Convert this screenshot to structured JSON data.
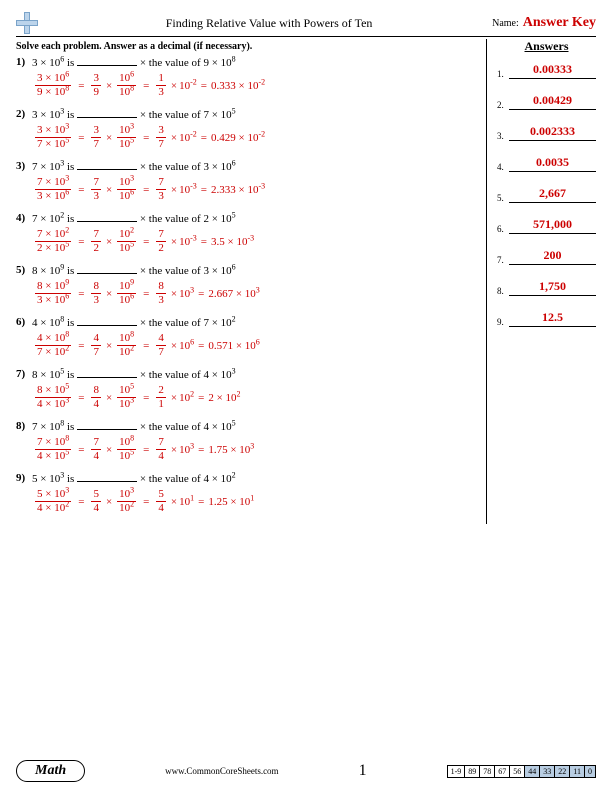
{
  "header": {
    "title": "Finding Relative Value with Powers of Ten",
    "nameLabel": "Name:",
    "answerKey": "Answer Key"
  },
  "instruction": "Solve each problem. Answer as a decimal (if necessary).",
  "answersHeader": "Answers",
  "problems": [
    {
      "n": "1",
      "a": "3",
      "ae": "6",
      "b": "9",
      "be": "8",
      "c": "1",
      "d": "3",
      "pe": "-2",
      "coef": "0.333",
      "ans": "0.00333"
    },
    {
      "n": "2",
      "a": "3",
      "ae": "3",
      "b": "7",
      "be": "5",
      "c": "3",
      "d": "7",
      "pe": "-2",
      "coef": "0.429",
      "ans": "0.00429"
    },
    {
      "n": "3",
      "a": "7",
      "ae": "3",
      "b": "3",
      "be": "6",
      "c": "7",
      "d": "3",
      "pe": "-3",
      "coef": "2.333",
      "ans": "0.002333"
    },
    {
      "n": "4",
      "a": "7",
      "ae": "2",
      "b": "2",
      "be": "5",
      "c": "7",
      "d": "2",
      "pe": "-3",
      "coef": "3.5",
      "ans": "0.0035"
    },
    {
      "n": "5",
      "a": "8",
      "ae": "9",
      "b": "3",
      "be": "6",
      "c": "8",
      "d": "3",
      "pe": "3",
      "coef": "2.667",
      "ans": "2,667"
    },
    {
      "n": "6",
      "a": "4",
      "ae": "8",
      "b": "7",
      "be": "2",
      "c": "4",
      "d": "7",
      "pe": "6",
      "coef": "0.571",
      "ans": "571,000"
    },
    {
      "n": "7",
      "a": "8",
      "ae": "5",
      "b": "4",
      "be": "3",
      "c": "2",
      "d": "1",
      "pe": "2",
      "coef": "2",
      "ans": "200"
    },
    {
      "n": "8",
      "a": "7",
      "ae": "8",
      "b": "4",
      "be": "5",
      "c": "7",
      "d": "4",
      "pe": "3",
      "coef": "1.75",
      "ans": "1,750"
    },
    {
      "n": "9",
      "a": "5",
      "ae": "3",
      "b": "4",
      "be": "2",
      "c": "5",
      "d": "4",
      "pe": "1",
      "coef": "1.25",
      "ans": "12.5"
    }
  ],
  "footer": {
    "subject": "Math",
    "url": "www.CommonCoreSheets.com",
    "page": "1",
    "scoreLabel": "1-9",
    "scores": [
      "89",
      "78",
      "67",
      "56",
      "44",
      "33",
      "22",
      "11",
      "0"
    ]
  }
}
